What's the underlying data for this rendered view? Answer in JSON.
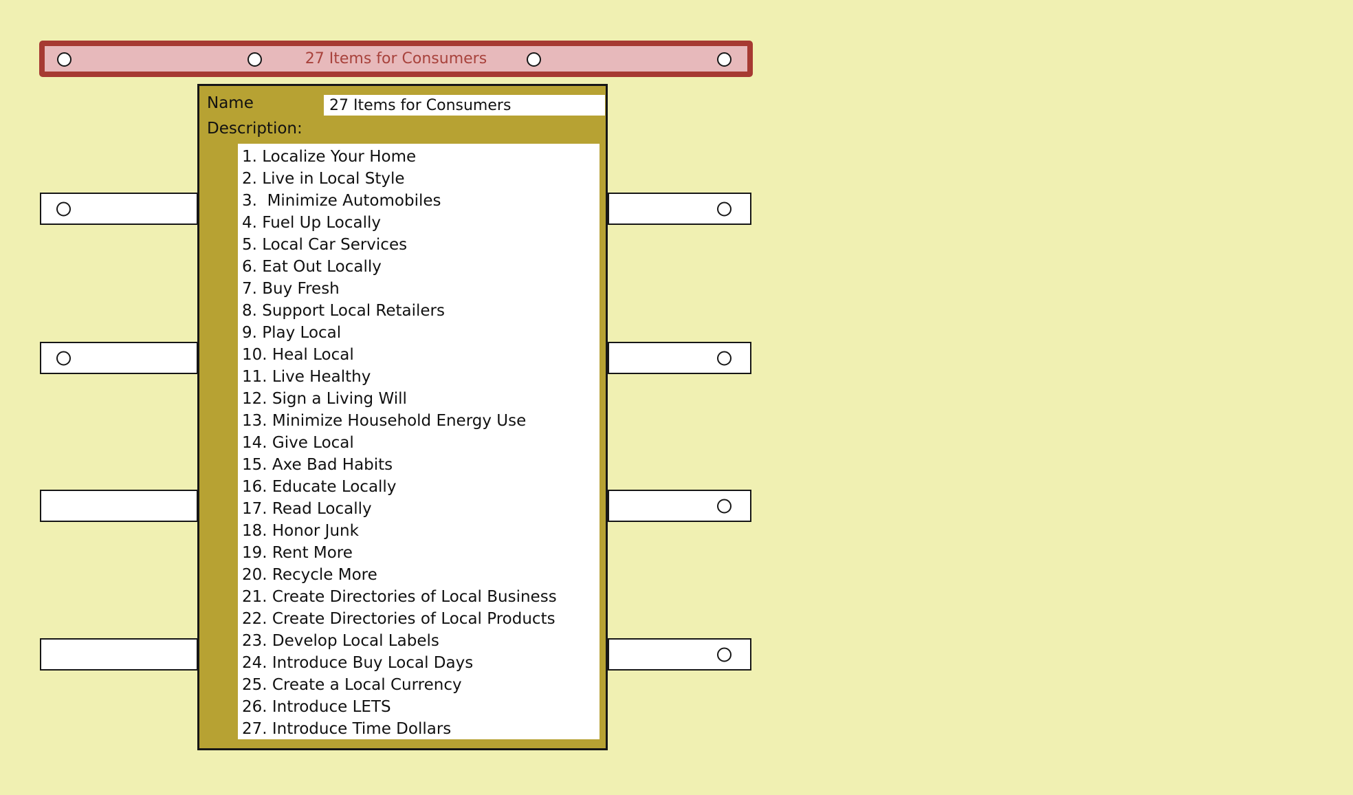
{
  "colors": {
    "background": "#f0f0b2",
    "title_bar_fill": "#e7b9bb",
    "title_bar_border": "#a63a32",
    "title_text": "#a8423c",
    "panel_fill": "#b7a233",
    "node_fill": "#ffffff",
    "outline": "#161616"
  },
  "icons": {
    "connection_port": "white circle with black ring (CSS border-radius circle)"
  },
  "title_bar": {
    "label": "27 Items for Consumers"
  },
  "panel": {
    "name_label": "Name",
    "name_value": "27 Items for Consumers",
    "description_label": "Description:",
    "description_items": [
      "1. Localize Your Home",
      "2. Live in Local Style",
      "3.  Minimize Automobiles",
      "4. Fuel Up Locally",
      "5. Local Car Services",
      "6. Eat Out Locally",
      "7. Buy Fresh",
      "8. Support Local Retailers",
      "9. Play Local",
      "10. Heal Local",
      "11. Live Healthy",
      "12. Sign a Living Will",
      "13. Minimize Household Energy Use",
      "14. Give Local",
      "15. Axe Bad Habits",
      "16. Educate Locally",
      "17. Read Locally",
      "18. Honor Junk",
      "19. Rent More",
      "20. Recycle More",
      "21. Create Directories of Local Business",
      "22. Create Directories of Local Products",
      "23. Develop Local Labels",
      "24. Introduce Buy Local Days",
      "25. Create a Local Currency",
      "26. Introduce LETS",
      "27. Introduce Time Dollars"
    ]
  }
}
